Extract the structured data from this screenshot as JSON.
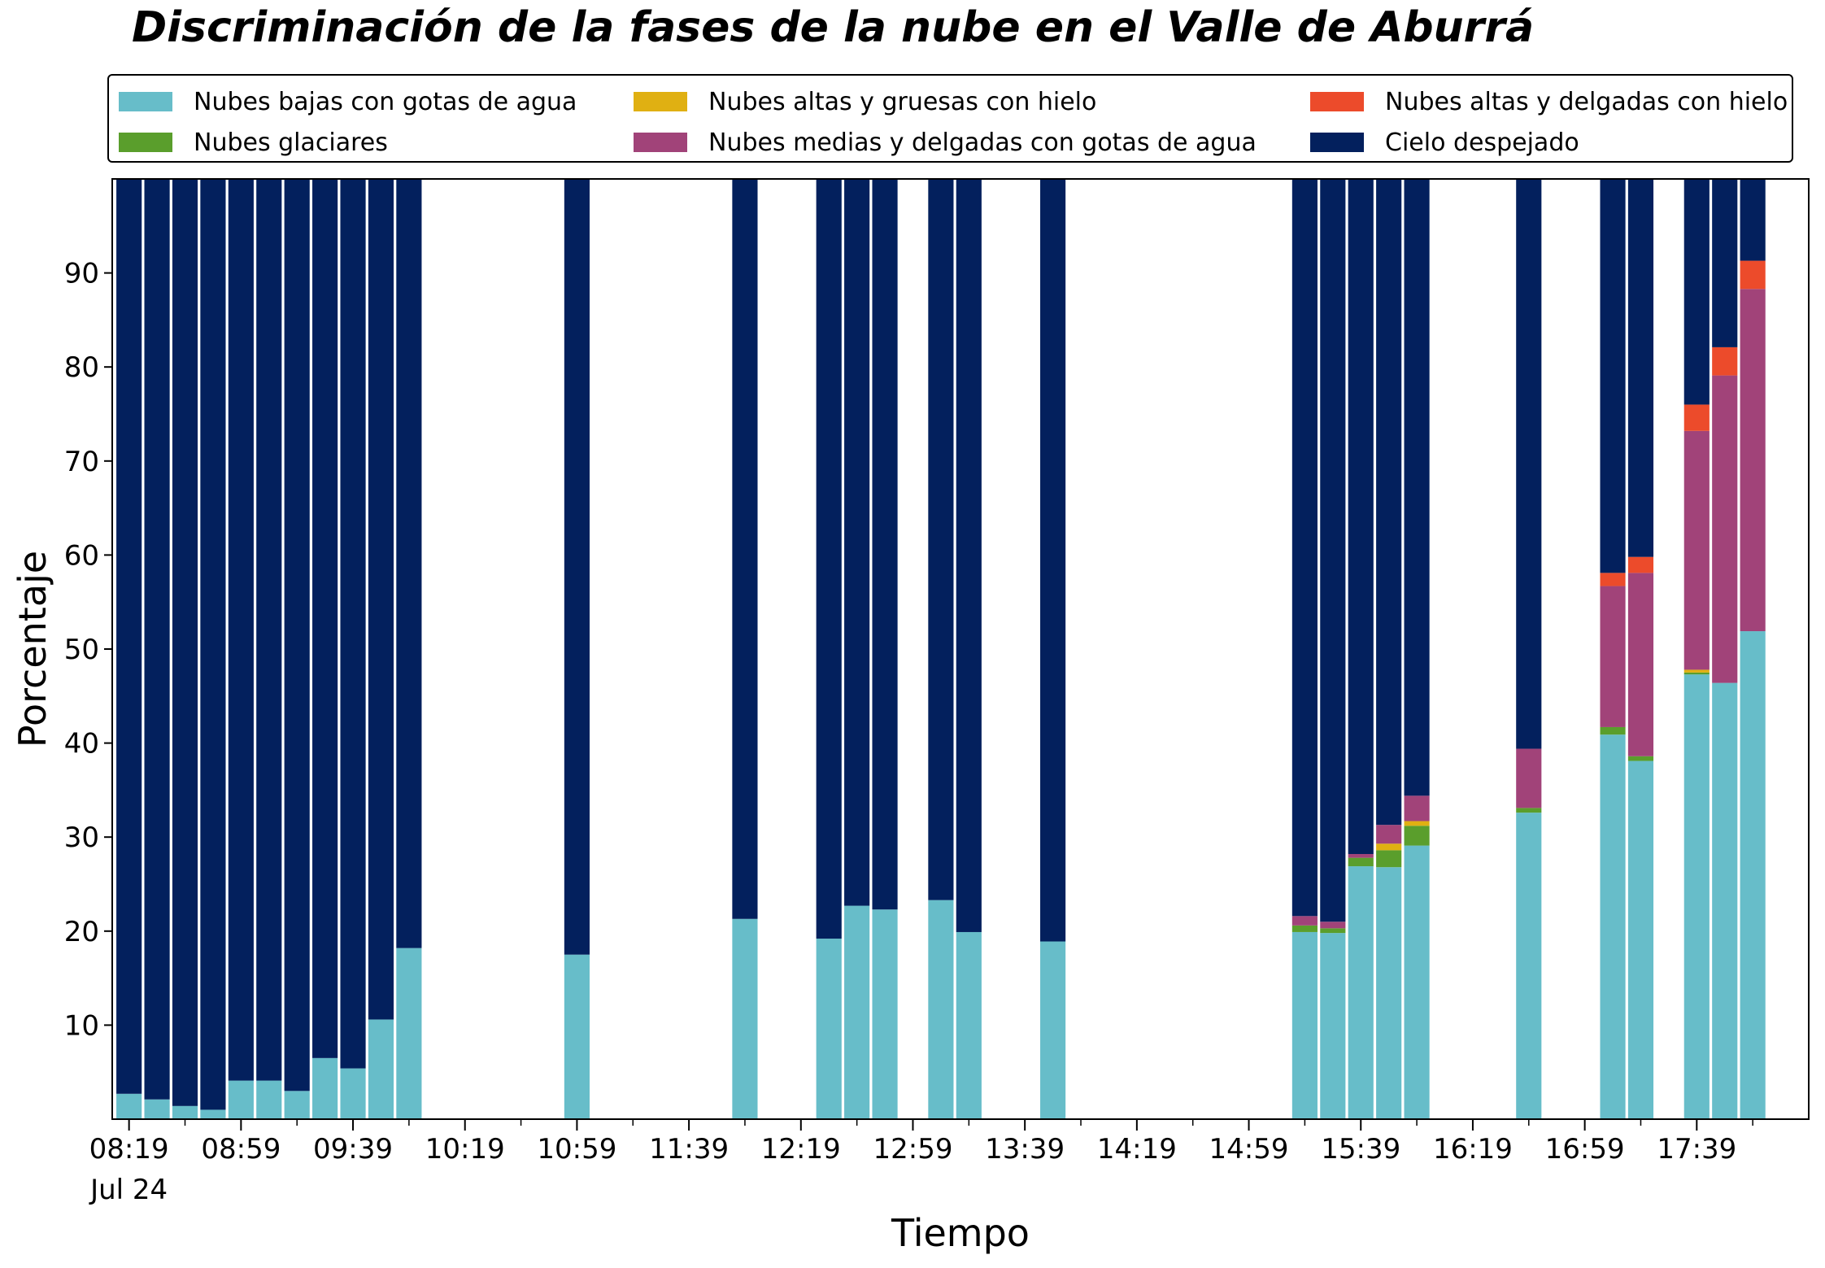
{
  "chart_data": {
    "type": "bar",
    "stacked": true,
    "title": "Discriminación de la fases de la nube en el Valle de Aburrá",
    "xlabel": "Tiempo",
    "ylabel": "Porcentaje",
    "ylim": [
      0,
      100
    ],
    "yticks": [
      10,
      20,
      30,
      40,
      50,
      60,
      70,
      80,
      90
    ],
    "xlim": [
      "08:13",
      "18:19"
    ],
    "xticks": [
      "08:19",
      "08:59",
      "09:39",
      "10:19",
      "10:59",
      "11:39",
      "12:19",
      "12:59",
      "13:39",
      "14:19",
      "14:59",
      "15:39",
      "16:19",
      "16:59",
      "17:39"
    ],
    "xtick_sublabel": "Jul 24",
    "legend_position": "top (above plot, 3 columns)",
    "grid": false,
    "colors": {
      "low_water": "#67BDC9",
      "glacial": "#5A9E2C",
      "high_thick_ice": "#E0B012",
      "mid_thin_water": "#A14379",
      "high_thin_ice": "#EC4B2B",
      "clear_sky": "#03205D"
    },
    "series": [
      {
        "key": "low_water",
        "name": "Nubes bajas con gotas de agua"
      },
      {
        "key": "glacial",
        "name": "Nubes glaciares"
      },
      {
        "key": "high_thick_ice",
        "name": "Nubes altas y gruesas con hielo"
      },
      {
        "key": "mid_thin_water",
        "name": "Nubes medias y delgadas con gotas de agua"
      },
      {
        "key": "high_thin_ice",
        "name": "Nubes altas y delgadas con hielo"
      },
      {
        "key": "clear_sky",
        "name": "Cielo despejado"
      }
    ],
    "legend_layout": [
      [
        "low_water",
        "glacial"
      ],
      [
        "high_thick_ice",
        "mid_thin_water"
      ],
      [
        "high_thin_ice",
        "clear_sky"
      ]
    ],
    "bars": [
      {
        "time": "08:19",
        "low_water": 2.7,
        "glacial": 0,
        "high_thick_ice": 0,
        "mid_thin_water": 0,
        "high_thin_ice": 0,
        "clear_sky": 97.3
      },
      {
        "time": "08:29",
        "low_water": 2.1,
        "glacial": 0,
        "high_thick_ice": 0,
        "mid_thin_water": 0,
        "high_thin_ice": 0,
        "clear_sky": 97.9
      },
      {
        "time": "08:39",
        "low_water": 1.4,
        "glacial": 0,
        "high_thick_ice": 0,
        "mid_thin_water": 0,
        "high_thin_ice": 0,
        "clear_sky": 98.6
      },
      {
        "time": "08:49",
        "low_water": 1.0,
        "glacial": 0,
        "high_thick_ice": 0,
        "mid_thin_water": 0,
        "high_thin_ice": 0,
        "clear_sky": 99.0
      },
      {
        "time": "08:59",
        "low_water": 4.1,
        "glacial": 0,
        "high_thick_ice": 0,
        "mid_thin_water": 0,
        "high_thin_ice": 0,
        "clear_sky": 95.9
      },
      {
        "time": "09:09",
        "low_water": 4.1,
        "glacial": 0,
        "high_thick_ice": 0,
        "mid_thin_water": 0,
        "high_thin_ice": 0,
        "clear_sky": 95.9
      },
      {
        "time": "09:19",
        "low_water": 3.0,
        "glacial": 0,
        "high_thick_ice": 0,
        "mid_thin_water": 0,
        "high_thin_ice": 0,
        "clear_sky": 97.0
      },
      {
        "time": "09:29",
        "low_water": 6.5,
        "glacial": 0,
        "high_thick_ice": 0,
        "mid_thin_water": 0,
        "high_thin_ice": 0,
        "clear_sky": 93.5
      },
      {
        "time": "09:39",
        "low_water": 5.4,
        "glacial": 0,
        "high_thick_ice": 0,
        "mid_thin_water": 0,
        "high_thin_ice": 0,
        "clear_sky": 94.6
      },
      {
        "time": "09:49",
        "low_water": 10.6,
        "glacial": 0,
        "high_thick_ice": 0,
        "mid_thin_water": 0,
        "high_thin_ice": 0,
        "clear_sky": 89.4
      },
      {
        "time": "09:59",
        "low_water": 18.2,
        "glacial": 0,
        "high_thick_ice": 0,
        "mid_thin_water": 0,
        "high_thin_ice": 0,
        "clear_sky": 81.8
      },
      {
        "time": "10:59",
        "low_water": 17.5,
        "glacial": 0,
        "high_thick_ice": 0,
        "mid_thin_water": 0,
        "high_thin_ice": 0,
        "clear_sky": 82.5
      },
      {
        "time": "11:59",
        "low_water": 21.3,
        "glacial": 0,
        "high_thick_ice": 0,
        "mid_thin_water": 0,
        "high_thin_ice": 0,
        "clear_sky": 78.7
      },
      {
        "time": "12:29",
        "low_water": 19.2,
        "glacial": 0,
        "high_thick_ice": 0,
        "mid_thin_water": 0,
        "high_thin_ice": 0,
        "clear_sky": 80.8
      },
      {
        "time": "12:39",
        "low_water": 22.7,
        "glacial": 0,
        "high_thick_ice": 0,
        "mid_thin_water": 0,
        "high_thin_ice": 0,
        "clear_sky": 77.3
      },
      {
        "time": "12:49",
        "low_water": 22.3,
        "glacial": 0,
        "high_thick_ice": 0,
        "mid_thin_water": 0,
        "high_thin_ice": 0,
        "clear_sky": 77.7
      },
      {
        "time": "13:09",
        "low_water": 23.3,
        "glacial": 0,
        "high_thick_ice": 0,
        "mid_thin_water": 0,
        "high_thin_ice": 0,
        "clear_sky": 76.7
      },
      {
        "time": "13:19",
        "low_water": 19.9,
        "glacial": 0,
        "high_thick_ice": 0,
        "mid_thin_water": 0,
        "high_thin_ice": 0,
        "clear_sky": 80.1
      },
      {
        "time": "13:49",
        "low_water": 18.9,
        "glacial": 0,
        "high_thick_ice": 0,
        "mid_thin_water": 0,
        "high_thin_ice": 0,
        "clear_sky": 81.1
      },
      {
        "time": "15:19",
        "low_water": 19.9,
        "glacial": 0.7,
        "high_thick_ice": 0,
        "mid_thin_water": 1.0,
        "high_thin_ice": 0,
        "clear_sky": 78.4
      },
      {
        "time": "15:29",
        "low_water": 19.8,
        "glacial": 0.5,
        "high_thick_ice": 0,
        "mid_thin_water": 0.7,
        "high_thin_ice": 0,
        "clear_sky": 79.0
      },
      {
        "time": "15:39",
        "low_water": 26.9,
        "glacial": 0.9,
        "high_thick_ice": 0,
        "mid_thin_water": 0.4,
        "high_thin_ice": 0,
        "clear_sky": 71.8
      },
      {
        "time": "15:49",
        "low_water": 26.8,
        "glacial": 1.8,
        "high_thick_ice": 0.7,
        "mid_thin_water": 2.0,
        "high_thin_ice": 0,
        "clear_sky": 68.7
      },
      {
        "time": "15:59",
        "low_water": 29.1,
        "glacial": 2.1,
        "high_thick_ice": 0.5,
        "mid_thin_water": 2.7,
        "high_thin_ice": 0,
        "clear_sky": 65.6
      },
      {
        "time": "16:39",
        "low_water": 32.6,
        "glacial": 0.5,
        "high_thick_ice": 0,
        "mid_thin_water": 6.3,
        "high_thin_ice": 0,
        "clear_sky": 60.6
      },
      {
        "time": "17:09",
        "low_water": 40.9,
        "glacial": 0.8,
        "high_thick_ice": 0,
        "mid_thin_water": 15.0,
        "high_thin_ice": 1.4,
        "clear_sky": 41.9
      },
      {
        "time": "17:19",
        "low_water": 38.1,
        "glacial": 0.5,
        "high_thick_ice": 0,
        "mid_thin_water": 19.5,
        "high_thin_ice": 1.7,
        "clear_sky": 40.2
      },
      {
        "time": "17:39",
        "low_water": 47.3,
        "glacial": 0.2,
        "high_thick_ice": 0.3,
        "mid_thin_water": 25.4,
        "high_thin_ice": 2.8,
        "clear_sky": 24.0
      },
      {
        "time": "17:49",
        "low_water": 46.4,
        "glacial": 0,
        "high_thick_ice": 0,
        "mid_thin_water": 32.7,
        "high_thin_ice": 3.0,
        "clear_sky": 17.9
      },
      {
        "time": "17:59",
        "low_water": 51.9,
        "glacial": 0,
        "high_thick_ice": 0,
        "mid_thin_water": 36.4,
        "high_thin_ice": 3.0,
        "clear_sky": 8.7
      }
    ]
  }
}
